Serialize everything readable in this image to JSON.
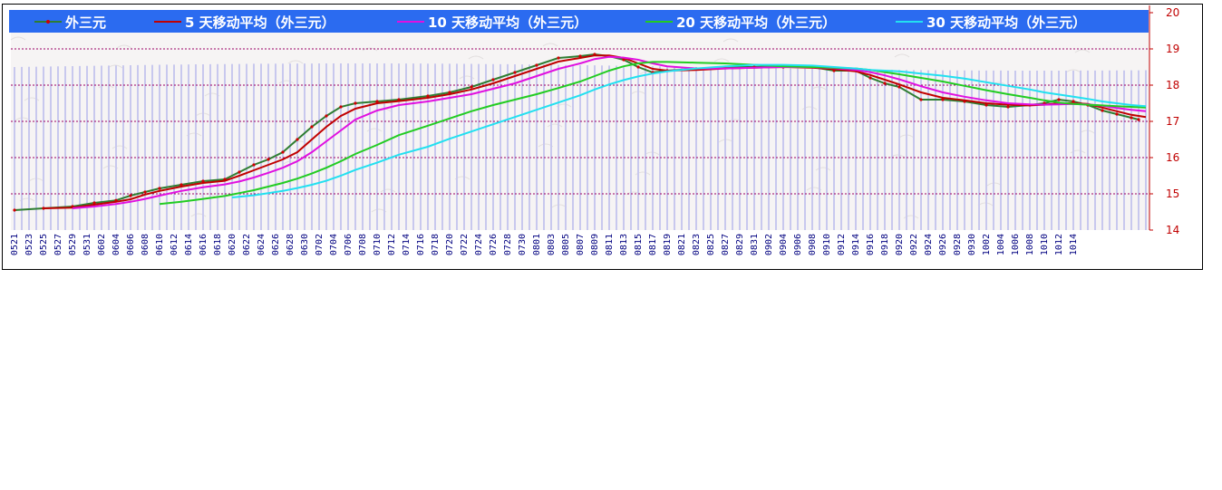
{
  "chart_data": {
    "type": "line",
    "title": "",
    "xlabel": "",
    "ylabel": "",
    "ylim": [
      14,
      20
    ],
    "y_ticks": [
      "14",
      "15",
      "16",
      "17",
      "18",
      "19",
      "20"
    ],
    "grid": "horizontal dotted",
    "legend_position": "top",
    "x_tick_labels": [
      "0521",
      "0523",
      "0525",
      "0527",
      "0529",
      "0531",
      "0602",
      "0604",
      "0606",
      "0608",
      "0610",
      "0612",
      "0614",
      "0616",
      "0618",
      "0620",
      "0622",
      "0624",
      "0626",
      "0628",
      "0630",
      "0702",
      "0704",
      "0706",
      "0708",
      "0710",
      "0712",
      "0714",
      "0716",
      "0718",
      "0720",
      "0722",
      "0724",
      "0726",
      "0728",
      "0730",
      "0801",
      "0803",
      "0805",
      "0807",
      "0809",
      "0811",
      "0813",
      "0815",
      "0817",
      "0819",
      "0821",
      "0823",
      "0825",
      "0827",
      "0829",
      "0831",
      "0902",
      "0904",
      "0906",
      "0908",
      "0910",
      "0912",
      "0914",
      "0916",
      "0918",
      "0920",
      "0922",
      "0924",
      "0926",
      "0928",
      "0930",
      "1002",
      "1004",
      "1006",
      "1008",
      "1010",
      "1012",
      "1014"
    ],
    "series": [
      {
        "name": "外三元",
        "color": "#2e7d32",
        "marker_color": "#d00000",
        "points": [
          [
            0,
            14.55
          ],
          [
            4,
            14.6
          ],
          [
            8,
            14.65
          ],
          [
            11,
            14.75
          ],
          [
            14,
            14.82
          ],
          [
            16,
            14.95
          ],
          [
            18,
            15.05
          ],
          [
            20,
            15.15
          ],
          [
            23,
            15.25
          ],
          [
            26,
            15.35
          ],
          [
            29,
            15.4
          ],
          [
            31,
            15.6
          ],
          [
            33,
            15.8
          ],
          [
            35,
            15.95
          ],
          [
            37,
            16.15
          ],
          [
            39,
            16.5
          ],
          [
            41,
            16.85
          ],
          [
            43,
            17.15
          ],
          [
            45,
            17.4
          ],
          [
            47,
            17.5
          ],
          [
            50,
            17.55
          ],
          [
            53,
            17.6
          ],
          [
            57,
            17.7
          ],
          [
            60,
            17.8
          ],
          [
            63,
            17.95
          ],
          [
            66,
            18.15
          ],
          [
            69,
            18.35
          ],
          [
            72,
            18.55
          ],
          [
            75,
            18.75
          ],
          [
            78,
            18.8
          ],
          [
            80,
            18.85
          ],
          [
            82,
            18.8
          ],
          [
            84,
            18.7
          ],
          [
            86,
            18.5
          ],
          [
            88,
            18.35
          ],
          [
            90,
            18.4
          ],
          [
            94,
            18.45
          ],
          [
            98,
            18.5
          ],
          [
            102,
            18.5
          ],
          [
            106,
            18.5
          ],
          [
            110,
            18.5
          ],
          [
            113,
            18.4
          ],
          [
            116,
            18.4
          ],
          [
            118,
            18.2
          ],
          [
            120,
            18.05
          ],
          [
            122,
            17.95
          ],
          [
            125,
            17.6
          ],
          [
            128,
            17.6
          ],
          [
            131,
            17.55
          ],
          [
            134,
            17.45
          ],
          [
            137,
            17.4
          ],
          [
            140,
            17.45
          ],
          [
            142,
            17.5
          ],
          [
            144,
            17.6
          ],
          [
            146,
            17.55
          ],
          [
            148,
            17.45
          ],
          [
            150,
            17.3
          ],
          [
            152,
            17.2
          ],
          [
            154,
            17.1
          ],
          [
            155,
            17.05
          ]
        ]
      },
      {
        "name": "5 天移动平均（外三元）",
        "color": "#c00000",
        "points": [
          [
            4,
            14.6
          ],
          [
            8,
            14.62
          ],
          [
            11,
            14.7
          ],
          [
            14,
            14.78
          ],
          [
            16,
            14.85
          ],
          [
            18,
            14.98
          ],
          [
            20,
            15.08
          ],
          [
            23,
            15.2
          ],
          [
            26,
            15.3
          ],
          [
            29,
            15.36
          ],
          [
            31,
            15.5
          ],
          [
            33,
            15.65
          ],
          [
            35,
            15.8
          ],
          [
            37,
            15.95
          ],
          [
            39,
            16.15
          ],
          [
            41,
            16.5
          ],
          [
            43,
            16.85
          ],
          [
            45,
            17.15
          ],
          [
            47,
            17.35
          ],
          [
            50,
            17.5
          ],
          [
            53,
            17.56
          ],
          [
            57,
            17.65
          ],
          [
            60,
            17.75
          ],
          [
            63,
            17.88
          ],
          [
            66,
            18.05
          ],
          [
            69,
            18.25
          ],
          [
            72,
            18.45
          ],
          [
            75,
            18.65
          ],
          [
            78,
            18.75
          ],
          [
            80,
            18.82
          ],
          [
            82,
            18.82
          ],
          [
            84,
            18.75
          ],
          [
            86,
            18.6
          ],
          [
            88,
            18.45
          ],
          [
            90,
            18.4
          ],
          [
            94,
            18.42
          ],
          [
            98,
            18.46
          ],
          [
            102,
            18.48
          ],
          [
            106,
            18.5
          ],
          [
            110,
            18.48
          ],
          [
            113,
            18.44
          ],
          [
            116,
            18.38
          ],
          [
            118,
            18.28
          ],
          [
            120,
            18.15
          ],
          [
            122,
            18.02
          ],
          [
            125,
            17.8
          ],
          [
            128,
            17.65
          ],
          [
            131,
            17.58
          ],
          [
            134,
            17.5
          ],
          [
            137,
            17.46
          ],
          [
            140,
            17.44
          ],
          [
            142,
            17.46
          ],
          [
            144,
            17.5
          ],
          [
            146,
            17.5
          ],
          [
            148,
            17.48
          ],
          [
            150,
            17.38
          ],
          [
            152,
            17.28
          ],
          [
            154,
            17.18
          ],
          [
            156,
            17.12
          ]
        ]
      },
      {
        "name": "10 天移动平均（外三元）",
        "color": "#e010e0",
        "points": [
          [
            8,
            14.6
          ],
          [
            11,
            14.65
          ],
          [
            14,
            14.72
          ],
          [
            16,
            14.78
          ],
          [
            18,
            14.86
          ],
          [
            20,
            14.95
          ],
          [
            23,
            15.08
          ],
          [
            26,
            15.18
          ],
          [
            29,
            15.26
          ],
          [
            31,
            15.34
          ],
          [
            33,
            15.45
          ],
          [
            35,
            15.58
          ],
          [
            37,
            15.72
          ],
          [
            39,
            15.9
          ],
          [
            41,
            16.15
          ],
          [
            43,
            16.45
          ],
          [
            45,
            16.75
          ],
          [
            47,
            17.05
          ],
          [
            50,
            17.3
          ],
          [
            53,
            17.45
          ],
          [
            57,
            17.55
          ],
          [
            60,
            17.65
          ],
          [
            63,
            17.75
          ],
          [
            66,
            17.9
          ],
          [
            69,
            18.05
          ],
          [
            72,
            18.25
          ],
          [
            75,
            18.45
          ],
          [
            78,
            18.6
          ],
          [
            80,
            18.72
          ],
          [
            82,
            18.78
          ],
          [
            84,
            18.76
          ],
          [
            86,
            18.7
          ],
          [
            88,
            18.6
          ],
          [
            90,
            18.52
          ],
          [
            94,
            18.46
          ],
          [
            98,
            18.46
          ],
          [
            102,
            18.48
          ],
          [
            106,
            18.5
          ],
          [
            110,
            18.5
          ],
          [
            113,
            18.47
          ],
          [
            116,
            18.42
          ],
          [
            118,
            18.36
          ],
          [
            120,
            18.27
          ],
          [
            122,
            18.16
          ],
          [
            125,
            17.97
          ],
          [
            128,
            17.8
          ],
          [
            131,
            17.68
          ],
          [
            134,
            17.58
          ],
          [
            137,
            17.5
          ],
          [
            140,
            17.47
          ],
          [
            142,
            17.46
          ],
          [
            144,
            17.47
          ],
          [
            146,
            17.48
          ],
          [
            148,
            17.47
          ],
          [
            150,
            17.43
          ],
          [
            152,
            17.37
          ],
          [
            154,
            17.32
          ],
          [
            156,
            17.28
          ]
        ]
      },
      {
        "name": "20 天移动平均（外三元）",
        "color": "#22cc22",
        "points": [
          [
            20,
            14.72
          ],
          [
            23,
            14.78
          ],
          [
            26,
            14.86
          ],
          [
            29,
            14.94
          ],
          [
            31,
            15.02
          ],
          [
            33,
            15.1
          ],
          [
            35,
            15.2
          ],
          [
            37,
            15.3
          ],
          [
            39,
            15.42
          ],
          [
            41,
            15.56
          ],
          [
            43,
            15.72
          ],
          [
            45,
            15.9
          ],
          [
            47,
            16.1
          ],
          [
            50,
            16.35
          ],
          [
            53,
            16.62
          ],
          [
            57,
            16.88
          ],
          [
            60,
            17.08
          ],
          [
            63,
            17.28
          ],
          [
            66,
            17.45
          ],
          [
            69,
            17.6
          ],
          [
            72,
            17.75
          ],
          [
            75,
            17.92
          ],
          [
            78,
            18.1
          ],
          [
            80,
            18.25
          ],
          [
            82,
            18.4
          ],
          [
            84,
            18.52
          ],
          [
            86,
            18.6
          ],
          [
            88,
            18.64
          ],
          [
            90,
            18.64
          ],
          [
            94,
            18.62
          ],
          [
            98,
            18.6
          ],
          [
            102,
            18.56
          ],
          [
            106,
            18.52
          ],
          [
            110,
            18.5
          ],
          [
            113,
            18.48
          ],
          [
            116,
            18.46
          ],
          [
            118,
            18.42
          ],
          [
            120,
            18.36
          ],
          [
            122,
            18.3
          ],
          [
            125,
            18.2
          ],
          [
            128,
            18.1
          ],
          [
            131,
            17.98
          ],
          [
            134,
            17.86
          ],
          [
            137,
            17.75
          ],
          [
            140,
            17.65
          ],
          [
            142,
            17.58
          ],
          [
            144,
            17.52
          ],
          [
            146,
            17.48
          ],
          [
            148,
            17.46
          ],
          [
            150,
            17.44
          ],
          [
            152,
            17.42
          ],
          [
            154,
            17.4
          ],
          [
            156,
            17.38
          ]
        ]
      },
      {
        "name": "30 天移动平均（外三元）",
        "color": "#22e0f0",
        "points": [
          [
            30,
            14.9
          ],
          [
            33,
            14.96
          ],
          [
            35,
            15.02
          ],
          [
            37,
            15.08
          ],
          [
            39,
            15.16
          ],
          [
            41,
            15.25
          ],
          [
            43,
            15.36
          ],
          [
            45,
            15.5
          ],
          [
            47,
            15.66
          ],
          [
            50,
            15.86
          ],
          [
            53,
            16.08
          ],
          [
            57,
            16.3
          ],
          [
            60,
            16.52
          ],
          [
            63,
            16.72
          ],
          [
            66,
            16.92
          ],
          [
            69,
            17.12
          ],
          [
            72,
            17.32
          ],
          [
            75,
            17.52
          ],
          [
            78,
            17.72
          ],
          [
            80,
            17.88
          ],
          [
            82,
            18.02
          ],
          [
            84,
            18.14
          ],
          [
            86,
            18.24
          ],
          [
            88,
            18.32
          ],
          [
            90,
            18.38
          ],
          [
            94,
            18.46
          ],
          [
            98,
            18.52
          ],
          [
            102,
            18.56
          ],
          [
            106,
            18.56
          ],
          [
            110,
            18.54
          ],
          [
            113,
            18.5
          ],
          [
            116,
            18.46
          ],
          [
            118,
            18.42
          ],
          [
            120,
            18.4
          ],
          [
            122,
            18.38
          ],
          [
            125,
            18.32
          ],
          [
            128,
            18.26
          ],
          [
            131,
            18.18
          ],
          [
            134,
            18.08
          ],
          [
            137,
            17.98
          ],
          [
            140,
            17.88
          ],
          [
            142,
            17.8
          ],
          [
            144,
            17.74
          ],
          [
            146,
            17.68
          ],
          [
            148,
            17.62
          ],
          [
            150,
            17.55
          ],
          [
            152,
            17.5
          ],
          [
            154,
            17.45
          ],
          [
            156,
            17.42
          ]
        ]
      }
    ]
  }
}
